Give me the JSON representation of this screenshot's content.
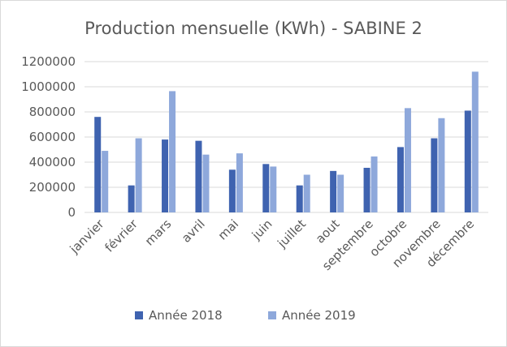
{
  "chart_data": {
    "type": "bar",
    "title": "Production mensuelle (KWh) - SABINE 2",
    "xlabel": "",
    "ylabel": "",
    "categories": [
      "janvier",
      "février",
      "mars",
      "avril",
      "mai",
      "juin",
      "juillet",
      "aout",
      "septembre",
      "octobre",
      "novembre",
      "décembre"
    ],
    "series": [
      {
        "name": "Année 2018",
        "color": "#3F63B0",
        "values": [
          760000,
          215000,
          580000,
          570000,
          340000,
          385000,
          215000,
          330000,
          355000,
          520000,
          590000,
          810000
        ]
      },
      {
        "name": "Année 2019",
        "color": "#8EA8DB",
        "values": [
          490000,
          590000,
          965000,
          460000,
          470000,
          365000,
          300000,
          300000,
          445000,
          830000,
          750000,
          1120000
        ]
      }
    ],
    "ylim": [
      0,
      1200000
    ],
    "yticks": [
      "0",
      "200000",
      "400000",
      "600000",
      "800000",
      "1000000",
      "1200000"
    ],
    "grid": true,
    "legend_position": "bottom"
  }
}
